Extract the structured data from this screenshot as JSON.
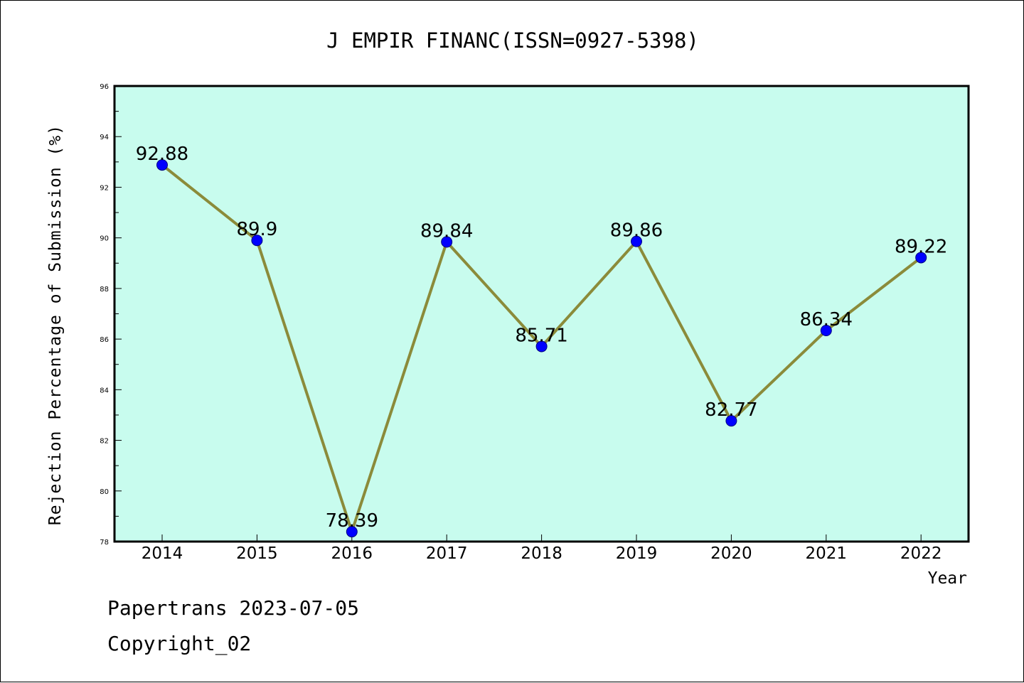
{
  "chart_data": {
    "type": "line",
    "title": "J EMPIR FINANC(ISSN=0927-5398)",
    "xlabel": "Year",
    "ylabel": "Rejection Percentage of Submission (%)",
    "categories": [
      "2014",
      "2015",
      "2016",
      "2017",
      "2018",
      "2019",
      "2020",
      "2021",
      "2022"
    ],
    "series": [
      {
        "values": [
          92.88,
          89.9,
          78.39,
          89.84,
          85.71,
          89.86,
          82.77,
          86.34,
          89.22
        ],
        "data_labels": [
          "92.88",
          "89.9",
          "78.39",
          "89.84",
          "85.71",
          "89.86",
          "82.77",
          "86.34",
          "89.22"
        ],
        "line_color": "#8B8B3A",
        "marker_color": "#0000FF"
      }
    ],
    "ylim": [
      78,
      96
    ],
    "yticks": [
      78,
      80,
      82,
      84,
      86,
      88,
      90,
      92,
      94,
      96
    ],
    "plot_background": "#C8FCEE",
    "grid": false
  },
  "footer": {
    "line1": "Papertrans 2023-07-05",
    "line2": "Copyright_02"
  }
}
